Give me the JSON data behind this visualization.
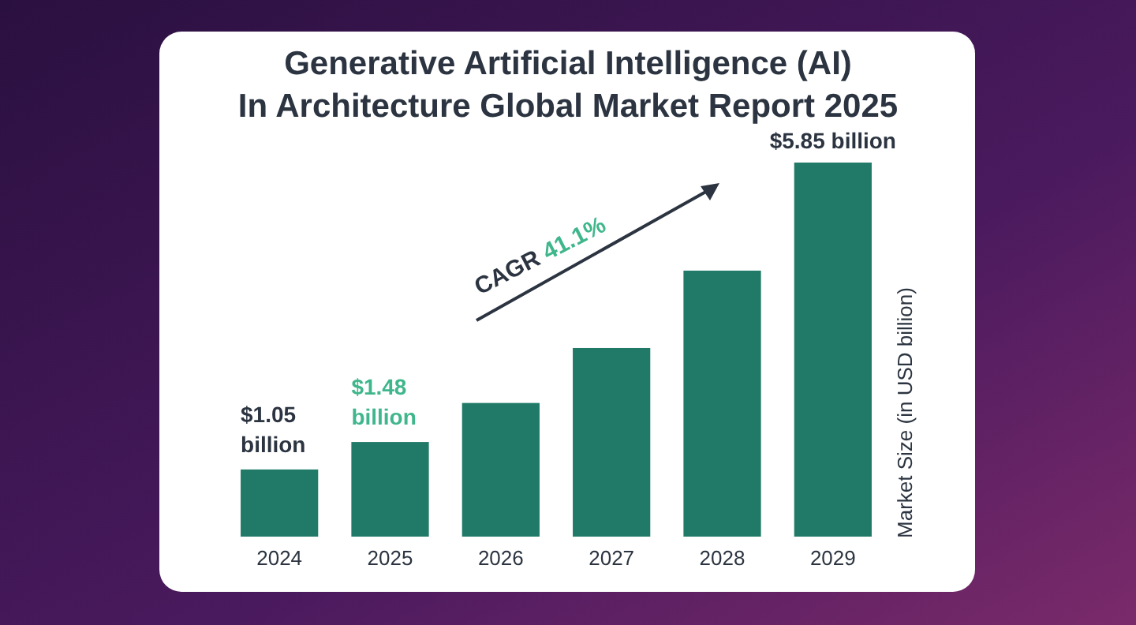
{
  "chart_data": {
    "type": "bar",
    "title": "Generative Artificial Intelligence (AI) In Architecture Global Market Report 2025",
    "ylabel": "Market Size (in USD billion)",
    "categories": [
      "2024",
      "2025",
      "2026",
      "2027",
      "2028",
      "2029"
    ],
    "values": [
      1.05,
      1.48,
      2.09,
      2.95,
      4.16,
      5.85
    ],
    "color": "#217a67",
    "value_labels": [
      "$1.05 billion",
      "$1.48 billion",
      null,
      null,
      null,
      "$5.85 billion"
    ],
    "annotations": [
      "CAGR 41.1%"
    ]
  }
}
